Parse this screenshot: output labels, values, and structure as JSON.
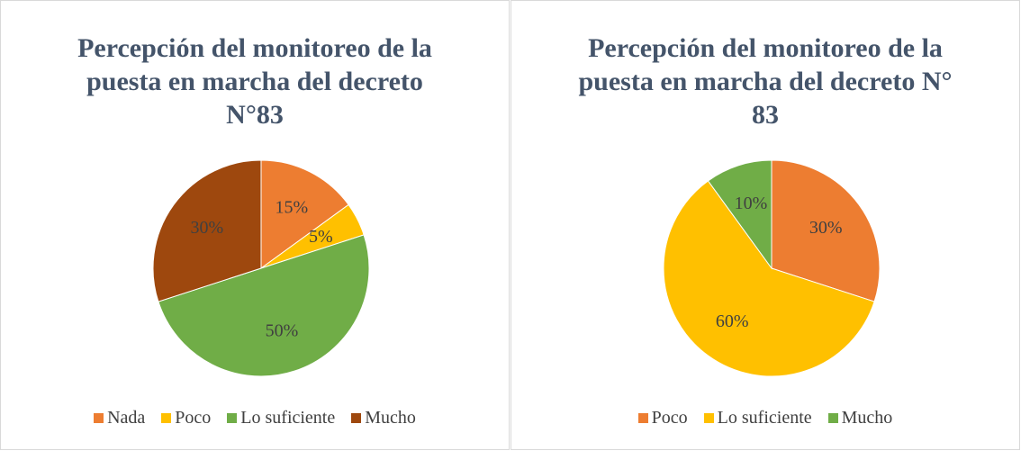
{
  "chart_data": [
    {
      "type": "pie",
      "title": "Percepción del monitoreo de la puesta en marcha del decreto N°83",
      "categories": [
        "Nada",
        "Poco",
        "Lo suficiente",
        "Mucho"
      ],
      "values": [
        15,
        5,
        50,
        30
      ],
      "value_labels": [
        "15%",
        "5%",
        "50%",
        "30%"
      ],
      "colors": [
        "#ED7D31",
        "#FFC000",
        "#70AD47",
        "#9E480E"
      ],
      "legend": "bottom"
    },
    {
      "type": "pie",
      "title": "Percepción del monitoreo de la puesta en marcha del decreto N° 83",
      "categories": [
        "Poco",
        "Lo suficiente",
        "Mucho"
      ],
      "values": [
        30,
        60,
        10
      ],
      "value_labels": [
        "30%",
        "60%",
        "10%"
      ],
      "colors": [
        "#ED7D31",
        "#FFC000",
        "#70AD47"
      ],
      "legend": "bottom"
    }
  ]
}
